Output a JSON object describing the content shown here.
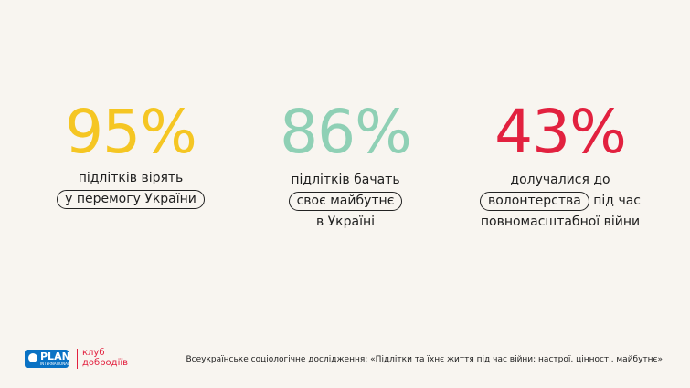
{
  "stats": [
    {
      "value": "95%",
      "color": "#f5c623",
      "lines": [
        "підлітків вірять",
        "у перемогу України"
      ]
    },
    {
      "value": "86%",
      "color": "#8fd0b5",
      "lines": [
        "підлітків бачать",
        "своє майбутнє",
        "в Україні"
      ]
    },
    {
      "value": "43%",
      "color": "#e2213f",
      "lines": [
        "долучалися до",
        "волонтерства",
        "під час",
        "повномасштабної війни"
      ]
    }
  ],
  "footer": {
    "logo": "PLAN",
    "logo_sub": "INTERNATIONAL",
    "club": [
      "клуб",
      "добродіїв"
    ],
    "source": "Всеукраїнське соціологічне дослідження: «Підлітки та їхнє життя під час війни: настрої, цінності, майбутнє»"
  }
}
